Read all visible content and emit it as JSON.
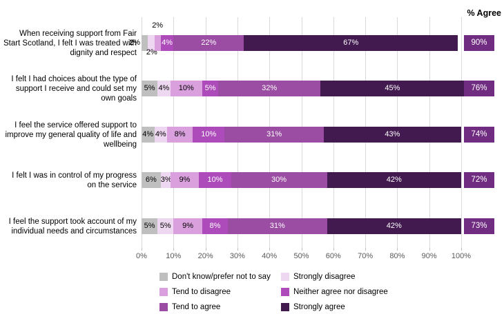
{
  "chart_data": {
    "type": "bar",
    "orientation": "horizontal",
    "stacked": true,
    "title": "",
    "agree_header": "% Agree",
    "xlim": [
      0,
      100
    ],
    "grid": true,
    "x_ticks": [
      "0%",
      "10%",
      "20%",
      "30%",
      "40%",
      "50%",
      "60%",
      "70%",
      "80%",
      "90%",
      "100%"
    ],
    "legend_position": "bottom",
    "series": [
      {
        "name": "Don't know/prefer not to say",
        "color": "#bfbfbf",
        "text_color": "#000000"
      },
      {
        "name": "Strongly disagree",
        "color": "#eed7f0",
        "text_color": "#000000"
      },
      {
        "name": "Tend to disagree",
        "color": "#d9a0dd",
        "text_color": "#000000"
      },
      {
        "name": "Neither agree nor disagree",
        "color": "#ad4bbb",
        "text_color": "#ffffff"
      },
      {
        "name": "Tend to agree",
        "color": "#9a4da2",
        "text_color": "#ffffff"
      },
      {
        "name": "Strongly agree",
        "color": "#421a4f",
        "text_color": "#ffffff"
      }
    ],
    "agree_box_color": "#702c80",
    "rows": [
      {
        "label": "When receiving support from Fair Start Scotland, I felt I was treated with dignity and respect",
        "values": [
          2,
          2,
          2,
          4,
          22,
          67
        ],
        "labels": [
          "2%",
          "2%",
          "2%",
          "4%",
          "22%",
          "67%"
        ],
        "label_positions": [
          "left",
          "below",
          "above",
          "inside",
          "inside",
          "inside"
        ],
        "agree": "90%"
      },
      {
        "label": "I felt I had choices about the type of support I receive and could set my own goals",
        "values": [
          5,
          4,
          10,
          5,
          32,
          45
        ],
        "labels": [
          "5%",
          "4%",
          "10%",
          "5%",
          "32%",
          "45%"
        ],
        "label_positions": [
          "inside",
          "inside",
          "inside",
          "inside",
          "inside",
          "inside"
        ],
        "agree": "76%"
      },
      {
        "label": "I feel the service offered support to improve my general quality of life and wellbeing",
        "values": [
          4,
          4,
          8,
          10,
          31,
          43
        ],
        "labels": [
          "4%",
          "4%",
          "8%",
          "10%",
          "31%",
          "43%"
        ],
        "label_positions": [
          "inside",
          "inside",
          "inside",
          "inside",
          "inside",
          "inside"
        ],
        "agree": "74%"
      },
      {
        "label": "I felt I was in control of my progress on the service",
        "values": [
          6,
          3,
          9,
          10,
          30,
          42
        ],
        "labels": [
          "6%",
          "3%",
          "9%",
          "10%",
          "30%",
          "42%"
        ],
        "label_positions": [
          "inside",
          "inside",
          "inside",
          "inside",
          "inside",
          "inside"
        ],
        "agree": "72%"
      },
      {
        "label": "I feel the support took account of my individual needs and circumstances",
        "values": [
          5,
          5,
          9,
          8,
          31,
          42
        ],
        "labels": [
          "5%",
          "5%",
          "9%",
          "8%",
          "31%",
          "42%"
        ],
        "label_positions": [
          "inside",
          "inside",
          "inside",
          "inside",
          "inside",
          "inside"
        ],
        "agree": "73%"
      }
    ]
  }
}
